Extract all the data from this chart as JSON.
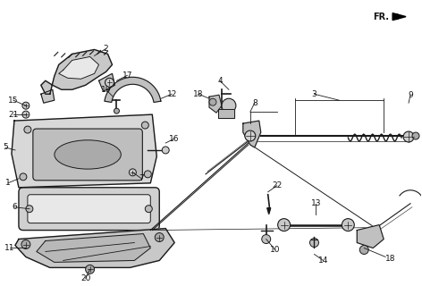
{
  "bg_color": "#ffffff",
  "line_color": "#1a1a1a",
  "text_color": "#111111",
  "figsize": [
    4.72,
    3.2
  ],
  "dpi": 100
}
